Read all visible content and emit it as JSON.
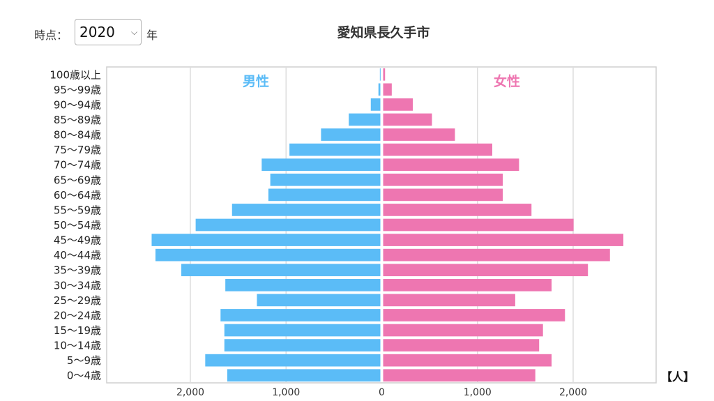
{
  "controls": {
    "year_label": "時点：",
    "selected_year": "2020",
    "year_suffix": "年"
  },
  "title": "愛知県長久手市",
  "unit_label": "【人】",
  "colors": {
    "male": "#5bbcf7",
    "female": "#ee76b1"
  },
  "chart_data": {
    "type": "bar",
    "orientation": "horizontal-population-pyramid",
    "title": "愛知県長久手市",
    "categories": [
      "0〜4歳",
      "5〜9歳",
      "10〜14歳",
      "15〜19歳",
      "20〜24歳",
      "25〜29歳",
      "30〜34歳",
      "35〜39歳",
      "40〜44歳",
      "45〜49歳",
      "50〜54歳",
      "55〜59歳",
      "60〜64歳",
      "65〜69歳",
      "70〜74歳",
      "75〜79歳",
      "80〜84歳",
      "85〜89歳",
      "90〜94歳",
      "95〜99歳",
      "100歳以上"
    ],
    "series": [
      {
        "name": "男性",
        "values": [
          1600,
          1830,
          1630,
          1630,
          1670,
          1290,
          1620,
          2080,
          2350,
          2390,
          1930,
          1550,
          1170,
          1150,
          1240,
          950,
          620,
          330,
          100,
          20,
          5
        ]
      },
      {
        "name": "女性",
        "values": [
          1590,
          1760,
          1630,
          1670,
          1900,
          1380,
          1760,
          2140,
          2370,
          2510,
          1990,
          1550,
          1250,
          1250,
          1420,
          1140,
          750,
          510,
          310,
          90,
          20
        ]
      }
    ],
    "x_ticks": [
      {
        "value": -2000,
        "label": "2,000"
      },
      {
        "value": -1000,
        "label": "1,000"
      },
      {
        "value": 0,
        "label": "0"
      },
      {
        "value": 1000,
        "label": "1,000"
      },
      {
        "value": 2000,
        "label": "2,000"
      }
    ],
    "xlim": [
      -2900,
      2900
    ],
    "grid": true,
    "xlabel": "【人】",
    "ylabel": ""
  }
}
